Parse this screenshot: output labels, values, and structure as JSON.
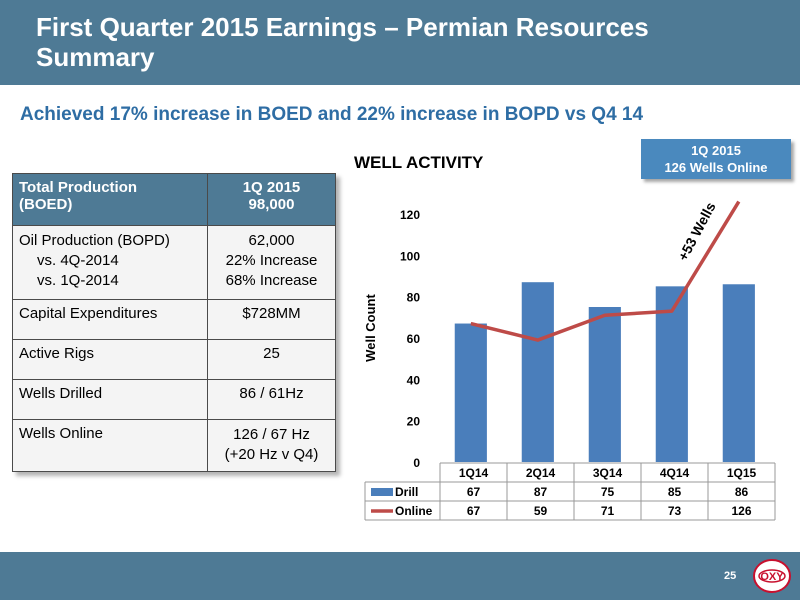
{
  "header": {
    "title": "First Quarter 2015 Earnings – Permian Resources Summary"
  },
  "subtitle": "Achieved 17% increase in BOED and 22% increase in BOPD vs Q4 14",
  "callout": {
    "line1": "1Q 2015",
    "line2": "126 Wells Online"
  },
  "summary_table": {
    "header": {
      "label_line1": "Total Production",
      "label_line2": "(BOED)",
      "value_line1": "1Q 2015",
      "value_line2": "98,000"
    },
    "rows": [
      {
        "label": [
          "Oil Production (BOPD)",
          "vs. 4Q-2014",
          "vs. 1Q-2014"
        ],
        "value": [
          "62,000",
          "22% Increase",
          "68% Increase"
        ]
      },
      {
        "label": [
          "Capital Expenditures"
        ],
        "value": [
          "$728MM"
        ]
      },
      {
        "label": [
          "Active Rigs"
        ],
        "value": [
          "25"
        ]
      },
      {
        "label": [
          "Wells Drilled"
        ],
        "value": [
          "86 / 61Hz"
        ]
      },
      {
        "label": [
          "Wells Online"
        ],
        "value": [
          "126 / 67 Hz",
          "(+20 Hz v Q4)"
        ]
      }
    ]
  },
  "chart_data": {
    "type": "bar",
    "title": "WELL ACTIVITY",
    "ylabel": "Well Count",
    "xlabel": "",
    "ylim": [
      0,
      120
    ],
    "yticks": [
      0,
      20,
      40,
      60,
      80,
      100,
      120
    ],
    "categories": [
      "1Q14",
      "2Q14",
      "3Q14",
      "4Q14",
      "1Q15"
    ],
    "series": [
      {
        "name": "Drill",
        "type": "bar",
        "values": [
          67,
          87,
          75,
          85,
          86
        ],
        "color": "#4a7ebb"
      },
      {
        "name": "Online",
        "type": "line",
        "values": [
          67,
          59,
          71,
          73,
          126
        ],
        "color": "#be4b48"
      }
    ],
    "annotation": "+53 Wells",
    "legend": "data-table-below"
  },
  "footer": {
    "page_number": "25",
    "logo_text": "OXY"
  }
}
